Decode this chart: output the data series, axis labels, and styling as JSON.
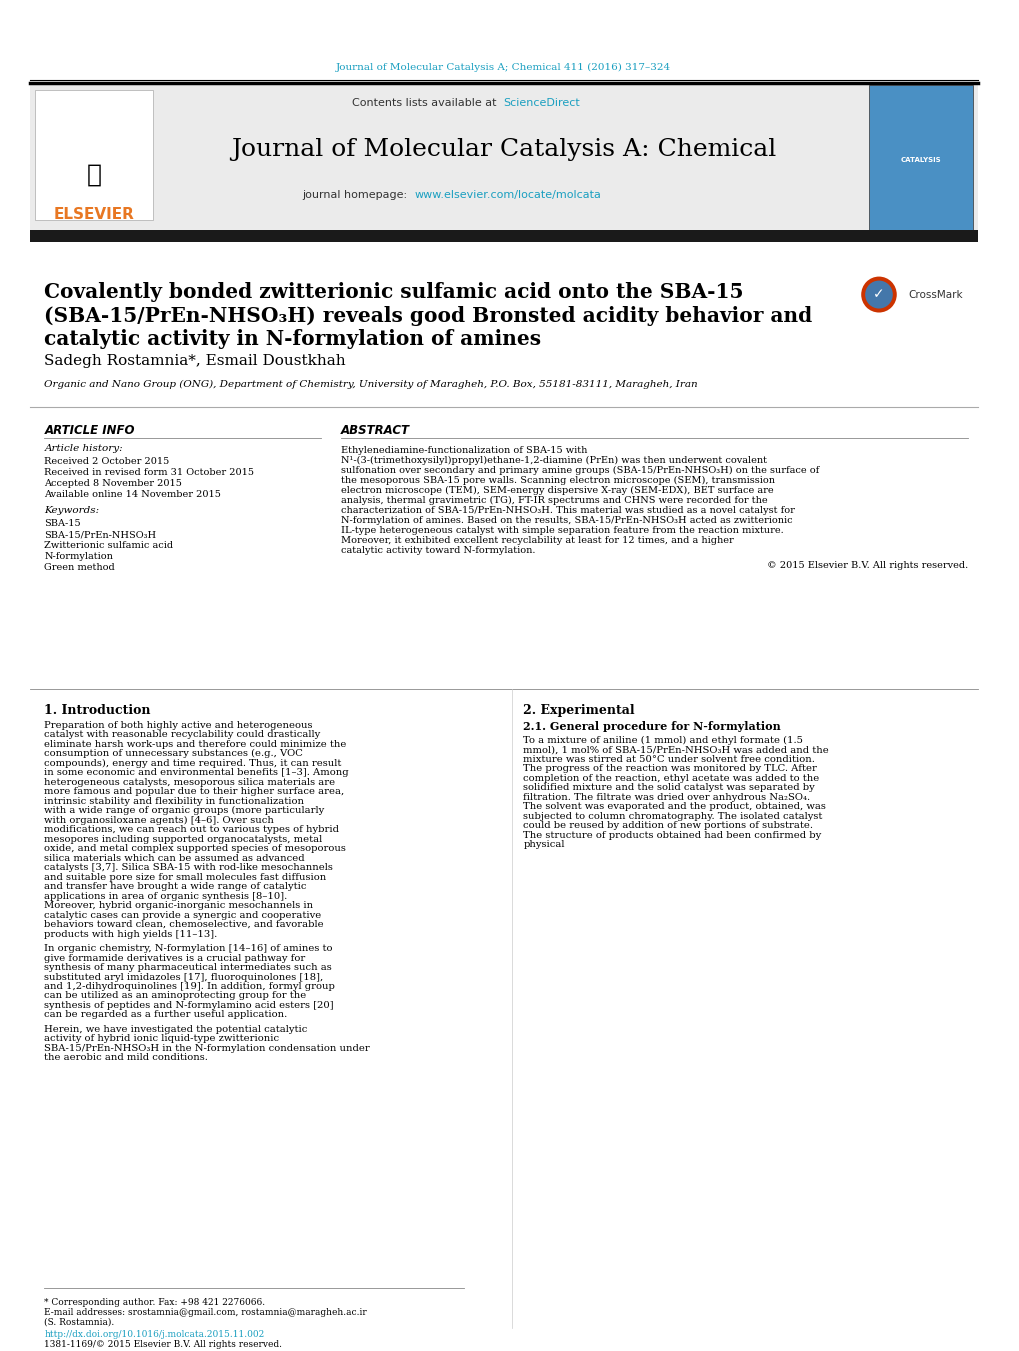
{
  "header_journal_text": "Journal of Molecular Catalysis A; Chemical 411 (2016) 317–324",
  "header_journal_color": "#1a9fc0",
  "contents_line": "Contents lists available at",
  "sciencedirect_text": "ScienceDirect",
  "sciencedirect_color": "#e87722",
  "journal_title": "Journal of Molecular Catalysis A: Chemical",
  "journal_homepage_label": "journal homepage:",
  "journal_url": "www.elsevier.com/locate/molcata",
  "journal_url_color": "#1a9fc0",
  "elsevier_text": "ELSEVIER",
  "elsevier_color": "#e87722",
  "article_title_line1": "Covalently bonded zwitterionic sulfamic acid onto the SBA-15",
  "article_title_line2": "(SBA-15/PrEn-NHSO₃H) reveals good Bronsted acidity behavior and",
  "article_title_line3": "catalytic activity in N-formylation of amines",
  "authors": "Sadegh Rostamnia*, Esmail Doustkhah",
  "affiliation": "Organic and Nano Group (ONG), Department of Chemistry, University of Maragheh, P.O. Box, 55181-83111, Maragheh, Iran",
  "article_info_title": "ARTICLE INFO",
  "article_history_title": "Article history:",
  "received": "Received 2 October 2015",
  "received_revised": "Received in revised form 31 October 2015",
  "accepted": "Accepted 8 November 2015",
  "available": "Available online 14 November 2015",
  "keywords_title": "Keywords:",
  "keyword1": "SBA-15",
  "keyword2": "SBA-15/PrEn-NHSO₃H",
  "keyword3": "Zwitterionic sulfamic acid",
  "keyword4": "N-formylation",
  "keyword5": "Green method",
  "abstract_title": "ABSTRACT",
  "abstract_text": "Ethylenediamine-functionalization of SBA-15 with N¹-(3-(trimethoxysilyl)propyl)ethane-1,2-diamine (PrEn) was then underwent covalent sulfonation over secondary and primary amine groups (SBA-15/PrEn-NHSO₃H) on the surface of the mesoporous SBA-15 pore walls. Scanning electron microscope (SEM), transmission electron microscope (TEM), SEM-energy dispersive X-ray (SEM-EDX), BET surface are analysis, thermal gravimetric (TG), FT-IR spectrums and CHNS were recorded for the characterization of SBA-15/PrEn-NHSO₃H. This material was studied as a novel catalyst for N-formylation of amines. Based on the results, SBA-15/PrEn-NHSO₃H acted as zwitterionic IL-type heterogeneous catalyst with simple separation feature from the reaction mixture. Moreover, it exhibited excellent recyclability at least for 12 times, and a higher catalytic activity toward N-formylation.",
  "copyright_text": "© 2015 Elsevier B.V. All rights reserved.",
  "intro_title": "1. Introduction",
  "intro_text1": "Preparation of both highly active and heterogeneous catalyst with reasonable recyclability could drastically eliminate harsh work-ups and therefore could minimize the consumption of unnecessary substances (e.g., VOC compounds), energy and time required. Thus, it can result in some economic and environmental benefits [1–3]. Among heterogeneous catalysts, mesoporous silica materials are more famous and popular due to their higher surface area, intrinsic stability and flexibility in functionalization with a wide range of organic groups (more particularly with organosiloxane agents) [4–6]. Over such modifications, we can reach out to various types of hybrid mesopores including supported organocatalysts, metal oxide, and metal complex supported species of mesoporous silica materials which can be assumed as advanced catalysts [3,7]. Silica SBA-15 with rod-like mesochannels and suitable pore size for small molecules fast diffusion and transfer have brought a wide range of catalytic applications in area of organic synthesis [8–10]. Moreover, hybrid organic-inorganic mesochannels in catalytic cases can provide a synergic and cooperative behaviors toward clean, chemoselective, and favorable products with high yields [11–13].",
  "intro_text2": "In organic chemistry, N-formylation [14–16] of amines to give formamide derivatives is a crucial pathway for synthesis of many pharmaceutical intermediates such as substituted aryl imidazoles [17], fluoroquinolones [18], and 1,2-dihydroquinolines [19]. In addition, formyl group can be utilized as an aminoprotecting group for the synthesis of peptides and N-formylamino acid esters [20] can be regarded as a further useful application.",
  "intro_text3": "Herein, we have investigated the potential catalytic activity of hybrid ionic liquid-type zwitterionic SBA-15/PrEn-NHSO₃H in the N-formylation condensation under the aerobic and mild conditions.",
  "experimental_title": "2. Experimental",
  "exp_sub_title": "2.1. General procedure for N-formylation",
  "exp_text": "To a mixture of aniline (1 mmol) and ethyl formate (1.5 mmol), 1 mol% of SBA-15/PrEn-NHSO₃H was added and the mixture was stirred at 50°C under solvent free condition. The progress of the reaction was monitored by TLC. After completion of the reaction, ethyl acetate was added to the solidified mixture and the solid catalyst was separated by filtration. The filtrate was dried over anhydrous Na₂SO₄. The solvent was evaporated and the product, obtained, was subjected to column chromatography. The isolated catalyst could be reused by addition of new portions of substrate. The structure of products obtained had been confirmed by physical",
  "footnote_corresponding": "* Corresponding author. Fax: +98 421 2276066.",
  "footnote_email1": "E-mail addresses: srostamnia@gmail.com, rostamnia@maragheh.ac.ir",
  "footnote_name": "(S. Rostamnia).",
  "footnote_doi": "http://dx.doi.org/10.1016/j.molcata.2015.11.002",
  "footnote_issn": "1381-1169/© 2015 Elsevier B.V. All rights reserved.",
  "header_bg": "#f0f0f0",
  "thick_bar_color": "#1a1a1a",
  "section_line_color": "#888888",
  "bg_color": "#ffffff",
  "text_color": "#000000",
  "title_color": "#000000",
  "link_color": "#1a9fc0"
}
